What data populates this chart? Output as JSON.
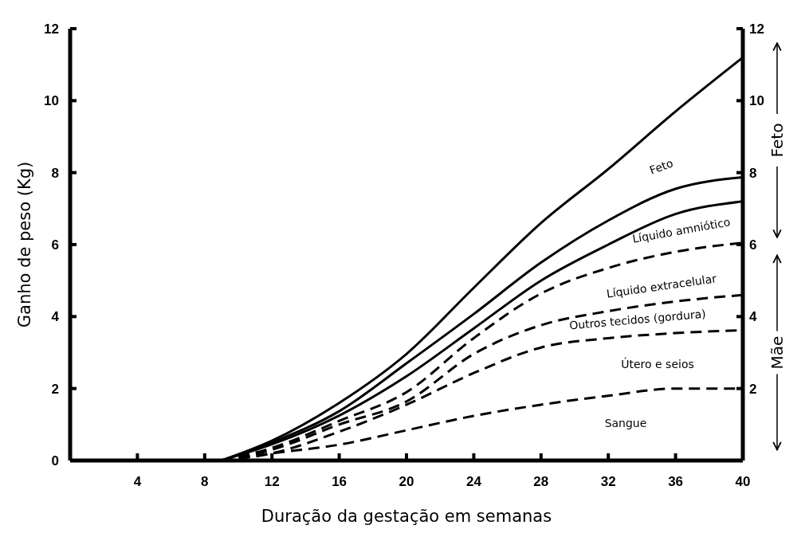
{
  "chart_data": {
    "type": "line",
    "xlabel": "Duração da gestação em semanas",
    "ylabel": "Ganho de peso (Kg)",
    "x": [
      9,
      12,
      16,
      20,
      24,
      28,
      32,
      36,
      40
    ],
    "series": [
      {
        "color": "#000000",
        "line_style": "solid",
        "values": [
          0,
          0.55,
          1.6,
          2.96,
          4.8,
          6.6,
          8.1,
          9.7,
          11.2
        ]
      },
      {
        "color": "#000000",
        "line_style": "solid",
        "values": [
          0,
          0.5,
          1.37,
          2.7,
          4.07,
          5.5,
          6.67,
          7.55,
          7.87
        ]
      },
      {
        "color": "#000000",
        "line_style": "solid",
        "values": [
          0,
          0.45,
          1.25,
          2.34,
          3.67,
          5.0,
          6.0,
          6.85,
          7.2
        ]
      },
      {
        "color": "#000000",
        "line_style": "dashed",
        "values": [
          0,
          0.35,
          1.1,
          1.9,
          3.4,
          4.64,
          5.35,
          5.8,
          6.05
        ]
      },
      {
        "color": "#000000",
        "line_style": "dashed",
        "values": [
          0,
          0.3,
          1.0,
          1.64,
          2.96,
          3.76,
          4.15,
          4.42,
          4.6
        ]
      },
      {
        "color": "#000000",
        "line_style": "dashed",
        "values": [
          0,
          0.2,
          0.8,
          1.55,
          2.43,
          3.14,
          3.4,
          3.54,
          3.62
        ]
      },
      {
        "color": "#000000",
        "line_style": "dashed",
        "values": [
          0,
          0.2,
          0.44,
          0.84,
          1.24,
          1.55,
          1.8,
          2.0,
          2.0
        ]
      }
    ],
    "xlim": [
      0,
      40
    ],
    "xticks": [
      4,
      8,
      12,
      16,
      20,
      24,
      28,
      32,
      36,
      40
    ],
    "ylim": [
      0,
      12
    ],
    "yticks": [
      0,
      2,
      4,
      6,
      8,
      10,
      12
    ],
    "y2lim": [
      0,
      12
    ],
    "y2ticks": [
      2,
      4,
      6,
      8,
      10,
      12
    ],
    "grid": false,
    "annotations": [
      "Feto",
      "Líquido amniótico",
      "Líquido extracelular",
      "Outros tecidos (gordura)",
      "Útero e seios",
      "Sangue",
      "Feto",
      "Mãe"
    ]
  }
}
